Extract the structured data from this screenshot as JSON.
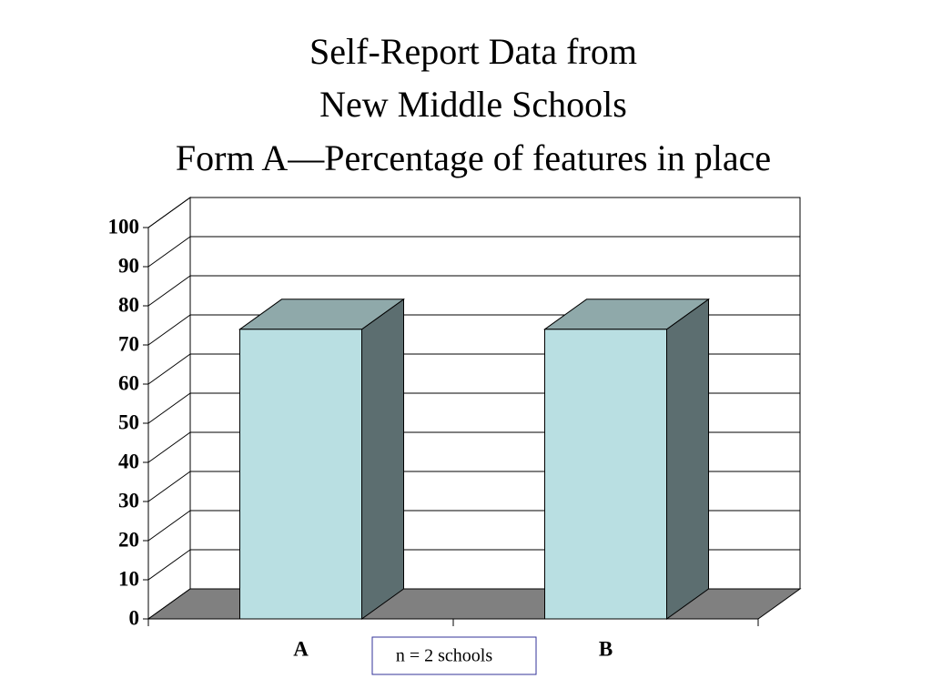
{
  "chart_data": {
    "type": "bar3d",
    "title": [
      "Self-Report Data from",
      "New Middle Schools",
      "Form A—Percentage of features in place"
    ],
    "categories": [
      "A",
      "B"
    ],
    "values": [
      74,
      74
    ],
    "color": "#b9dfe2",
    "ylim": [
      0,
      100
    ],
    "yticks": [
      0,
      10,
      20,
      30,
      40,
      50,
      60,
      70,
      80,
      90,
      100
    ],
    "grid": true,
    "annotation": "n = 2 schools"
  }
}
